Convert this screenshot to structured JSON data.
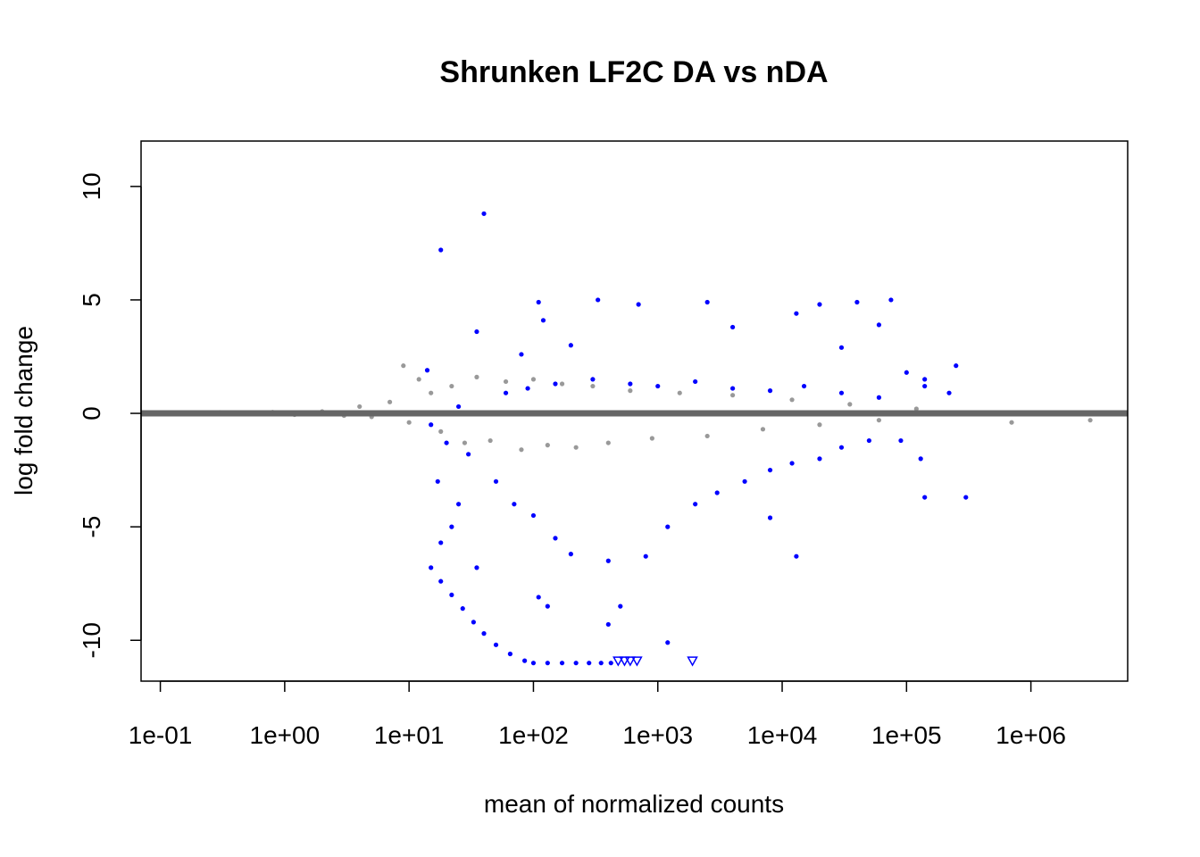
{
  "chart_data": {
    "type": "scatter",
    "title": "Shrunken LF2C DA vs nDA",
    "xlabel": "mean of normalized counts",
    "ylabel": "log fold change",
    "x_scale": "log10",
    "xlim": [
      0.07,
      6000000
    ],
    "ylim": [
      -11.8,
      12
    ],
    "x_ticks": [
      "1e-01",
      "1e+00",
      "1e+01",
      "1e+02",
      "1e+03",
      "1e+04",
      "1e+05",
      "1e+06"
    ],
    "x_tick_values": [
      0.1,
      1,
      10,
      100,
      1000,
      10000,
      100000,
      1000000
    ],
    "y_ticks": [
      "-10",
      "-5",
      "0",
      "5",
      "10"
    ],
    "y_tick_values": [
      -10,
      -5,
      0,
      5,
      10
    ],
    "grid": false,
    "reference_line": {
      "y": 0,
      "color": "#666666"
    },
    "colors": {
      "significant": "#0000ff",
      "not_significant": "#999999",
      "reference_line": "#666666"
    },
    "series": [
      {
        "significance": "not significant",
        "color": "#999999",
        "points": [
          [
            0.13,
            0.02
          ],
          [
            0.2,
            -0.03
          ],
          [
            0.3,
            0.04
          ],
          [
            0.5,
            -0.02
          ],
          [
            0.8,
            0.05
          ],
          [
            1.2,
            -0.06
          ],
          [
            2,
            0.08
          ],
          [
            3,
            -0.1
          ],
          [
            4,
            0.3
          ],
          [
            5,
            -0.15
          ],
          [
            7,
            0.5
          ],
          [
            9,
            2.1
          ],
          [
            10,
            -0.4
          ],
          [
            12,
            1.5
          ],
          [
            15,
            0.9
          ],
          [
            18,
            -0.8
          ],
          [
            22,
            1.2
          ],
          [
            28,
            -1.3
          ],
          [
            35,
            1.6
          ],
          [
            45,
            -1.2
          ],
          [
            60,
            1.4
          ],
          [
            80,
            -1.6
          ],
          [
            100,
            1.5
          ],
          [
            130,
            -1.4
          ],
          [
            170,
            1.3
          ],
          [
            220,
            -1.5
          ],
          [
            300,
            1.2
          ],
          [
            400,
            -1.3
          ],
          [
            600,
            1.0
          ],
          [
            900,
            -1.1
          ],
          [
            1500,
            0.9
          ],
          [
            2500,
            -1.0
          ],
          [
            4000,
            0.8
          ],
          [
            7000,
            -0.7
          ],
          [
            12000,
            0.6
          ],
          [
            20000,
            -0.5
          ],
          [
            35000,
            0.4
          ],
          [
            60000,
            -0.3
          ],
          [
            120000,
            0.2
          ],
          [
            700000,
            -0.4
          ],
          [
            3000000,
            -0.3
          ]
        ]
      },
      {
        "significance": "significant (padj < 0.1)",
        "color": "#0000ff",
        "points": [
          [
            40,
            8.8
          ],
          [
            18,
            7.2
          ],
          [
            110,
            4.9
          ],
          [
            120,
            4.1
          ],
          [
            35,
            3.6
          ],
          [
            14,
            1.9
          ],
          [
            80,
            2.6
          ],
          [
            200,
            3.0
          ],
          [
            330,
            5.0
          ],
          [
            700,
            4.8
          ],
          [
            2500,
            4.9
          ],
          [
            4000,
            3.8
          ],
          [
            13000,
            4.4
          ],
          [
            20000,
            4.8
          ],
          [
            40000,
            4.9
          ],
          [
            60000,
            3.9
          ],
          [
            75000,
            5.0
          ],
          [
            30000,
            2.9
          ],
          [
            250000,
            2.1
          ],
          [
            140000,
            1.2
          ],
          [
            220000,
            0.9
          ],
          [
            15,
            -0.5
          ],
          [
            20,
            -1.3
          ],
          [
            30,
            -1.8
          ],
          [
            50,
            -3.0
          ],
          [
            70,
            -4.0
          ],
          [
            100,
            -4.5
          ],
          [
            150,
            -5.5
          ],
          [
            200,
            -6.2
          ],
          [
            400,
            -6.5
          ],
          [
            800,
            -6.3
          ],
          [
            1200,
            -5.0
          ],
          [
            2000,
            -4.0
          ],
          [
            3000,
            -3.5
          ],
          [
            5000,
            -3.0
          ],
          [
            8000,
            -2.5
          ],
          [
            12000,
            -2.2
          ],
          [
            20000,
            -2.0
          ],
          [
            30000,
            -1.5
          ],
          [
            50000,
            -1.2
          ],
          [
            90000,
            -1.2
          ],
          [
            130000,
            -2.0
          ],
          [
            140000,
            -3.7
          ],
          [
            300000,
            -3.7
          ],
          [
            13000,
            -6.3
          ],
          [
            8000,
            -4.6
          ],
          [
            17,
            -3.0
          ],
          [
            25,
            -4.0
          ],
          [
            18,
            -5.7
          ],
          [
            22,
            -5.0
          ],
          [
            35,
            -6.8
          ],
          [
            110,
            -8.1
          ],
          [
            130,
            -8.5
          ],
          [
            400,
            -9.3
          ],
          [
            500,
            -8.5
          ],
          [
            1200,
            -10.1
          ],
          [
            15,
            -6.8
          ],
          [
            18,
            -7.4
          ],
          [
            22,
            -8.0
          ],
          [
            27,
            -8.6
          ],
          [
            33,
            -9.2
          ],
          [
            40,
            -9.7
          ],
          [
            50,
            -10.2
          ],
          [
            65,
            -10.6
          ],
          [
            85,
            -10.9
          ],
          [
            100,
            -11.0
          ],
          [
            130,
            -11.0
          ],
          [
            170,
            -11.0
          ],
          [
            220,
            -11.0
          ],
          [
            280,
            -11.0
          ],
          [
            350,
            -11.0
          ],
          [
            420,
            -11.0
          ],
          [
            15,
            0.0
          ],
          [
            25,
            0.3
          ],
          [
            60,
            0.9
          ],
          [
            90,
            1.1
          ],
          [
            150,
            1.3
          ],
          [
            300,
            1.5
          ],
          [
            600,
            1.3
          ],
          [
            1000,
            1.2
          ],
          [
            2000,
            1.4
          ],
          [
            4000,
            1.1
          ],
          [
            8000,
            1.0
          ],
          [
            15000,
            1.2
          ],
          [
            30000,
            0.9
          ],
          [
            60000,
            0.7
          ],
          [
            100000,
            1.8
          ],
          [
            140000,
            1.5
          ]
        ]
      },
      {
        "significance": "significant, beyond plot range",
        "color": "#0000ff",
        "marker": "triangle-down",
        "points": [
          [
            480,
            -10.9
          ],
          [
            540,
            -10.9
          ],
          [
            600,
            -10.9
          ],
          [
            680,
            -10.9
          ],
          [
            1900,
            -10.9
          ]
        ]
      }
    ]
  }
}
